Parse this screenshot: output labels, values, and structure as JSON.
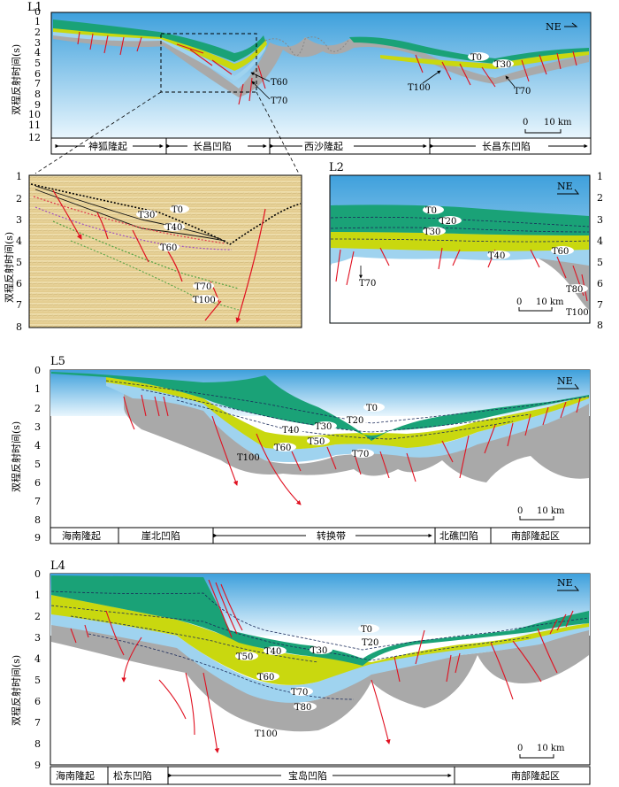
{
  "panels": {
    "L1": {
      "title": "L1",
      "direction": "NE",
      "y_ticks": [
        "0",
        "1",
        "2",
        "3",
        "4",
        "5",
        "6",
        "7",
        "8",
        "9",
        "10",
        "11",
        "12"
      ],
      "horizons": [
        "T0",
        "T30",
        "T60",
        "T70",
        "T100",
        "T70"
      ],
      "scale_label": "10 km",
      "scale_zero": "0",
      "regions": [
        "神狐隆起",
        "长昌凹陷",
        "西沙隆起",
        "长昌东凹陷"
      ]
    },
    "detail": {
      "y_ticks": [
        "1",
        "2",
        "3",
        "4",
        "5",
        "6",
        "7",
        "8"
      ],
      "horizons": [
        "T0",
        "T30",
        "T40",
        "T60",
        "T70",
        "T100"
      ]
    },
    "L2": {
      "title": "L2",
      "direction": "NE",
      "y_ticks": [
        "1",
        "2",
        "3",
        "4",
        "5",
        "6",
        "7",
        "8"
      ],
      "horizons": [
        "T0",
        "T20",
        "T30",
        "T40",
        "T60",
        "T80",
        "T100",
        "T70"
      ],
      "scale_label": "10 km",
      "scale_zero": "0"
    },
    "L5": {
      "title": "L5",
      "direction": "NE",
      "y_ticks": [
        "0",
        "1",
        "2",
        "3",
        "4",
        "5",
        "6",
        "7",
        "8",
        "9"
      ],
      "horizons": [
        "T0",
        "T20",
        "T30",
        "T40",
        "T50",
        "T60",
        "T70",
        "T100"
      ],
      "scale_label": "10 km",
      "scale_zero": "0",
      "regions": [
        "海南隆起",
        "崖北凹陷",
        "转换带",
        "北礁凹陷",
        "南部隆起区"
      ]
    },
    "L4": {
      "title": "L4",
      "direction": "NE",
      "y_ticks": [
        "0",
        "1",
        "2",
        "3",
        "4",
        "5",
        "6",
        "7",
        "8",
        "9"
      ],
      "horizons": [
        "T0",
        "T20",
        "T30",
        "T40",
        "T50",
        "T60",
        "T70",
        "T80",
        "T100"
      ],
      "scale_label": "10 km",
      "scale_zero": "0",
      "regions": [
        "海南隆起",
        "松东凹陷",
        "宝岛凹陷",
        "南部隆起区"
      ]
    }
  },
  "axis_title": "双程反射时间(s)",
  "colors": {
    "water_top": "#4aa8e0",
    "water_bottom": "#e8f5fc",
    "green": "#1aa277",
    "yellow_green": "#c9d80f",
    "light_blue": "#9fd3ef",
    "gray": "#a8a8a8",
    "fault": "#e01020",
    "seismic": "#e8d49a"
  }
}
